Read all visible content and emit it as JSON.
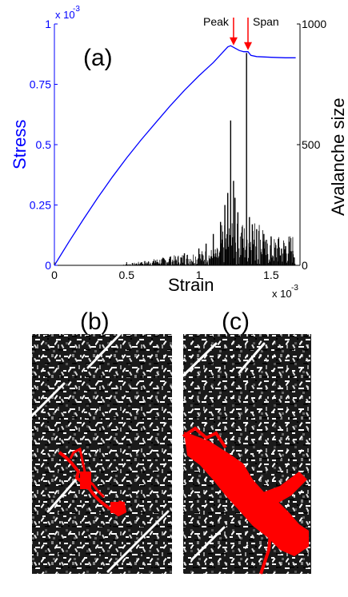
{
  "chart_data": {
    "type": "line",
    "panel_label": "(a)",
    "xlabel": "Strain",
    "x_exponent": "x 10",
    "x_exponent_power": "-3",
    "xlim": [
      0,
      1.7
    ],
    "x_ticks": [
      0,
      0.5,
      1,
      1.5
    ],
    "x_tick_labels": [
      "0",
      "0.5",
      "1",
      "1.5"
    ],
    "ylabel_left": "Stress",
    "y_exponent": "x 10",
    "y_exponent_power": "-3",
    "ylim_left": [
      0,
      1
    ],
    "y_left_ticks": [
      0,
      0.25,
      0.5,
      0.75,
      1
    ],
    "y_left_tick_labels": [
      "0",
      "0.25",
      "0.5",
      "0.75",
      "1"
    ],
    "ylabel_right": "Avalanche size",
    "ylim_right": [
      0,
      1000
    ],
    "y_right_ticks": [
      0,
      500,
      1000
    ],
    "y_right_tick_labels": [
      "0",
      "500",
      "1000"
    ],
    "series": [
      {
        "axis": "left",
        "color": "#0000ff",
        "x": [
          0,
          0.1,
          0.2,
          0.3,
          0.4,
          0.5,
          0.6,
          0.7,
          0.8,
          0.9,
          1.0,
          1.1,
          1.2,
          1.22,
          1.25,
          1.28,
          1.31,
          1.34,
          1.36,
          1.4,
          1.5,
          1.6,
          1.67
        ],
        "y": [
          0,
          0.097,
          0.19,
          0.28,
          0.365,
          0.445,
          0.52,
          0.59,
          0.66,
          0.725,
          0.785,
          0.84,
          0.905,
          0.91,
          0.9,
          0.89,
          0.885,
          0.885,
          0.87,
          0.865,
          0.862,
          0.86,
          0.86
        ]
      },
      {
        "axis": "right",
        "type": "bar",
        "color": "#000000",
        "x": [
          0.5,
          0.6,
          0.7,
          0.8,
          0.9,
          1.0,
          1.05,
          1.1,
          1.15,
          1.18,
          1.2,
          1.22,
          1.24,
          1.25,
          1.27,
          1.3,
          1.33,
          1.35,
          1.37,
          1.4,
          1.45,
          1.5,
          1.55,
          1.6,
          1.65
        ],
        "y": [
          5,
          12,
          20,
          35,
          50,
          70,
          90,
          130,
          180,
          250,
          300,
          600,
          350,
          280,
          220,
          160,
          880,
          200,
          170,
          150,
          130,
          120,
          110,
          80,
          60
        ]
      }
    ],
    "annotations": [
      {
        "text": "Peak",
        "x": 1.24,
        "color": "#ff0000"
      },
      {
        "text": "Span",
        "x": 1.34,
        "color": "#ff0000"
      }
    ],
    "subpanels": [
      {
        "label": "(b)"
      },
      {
        "label": "(c)"
      }
    ]
  }
}
